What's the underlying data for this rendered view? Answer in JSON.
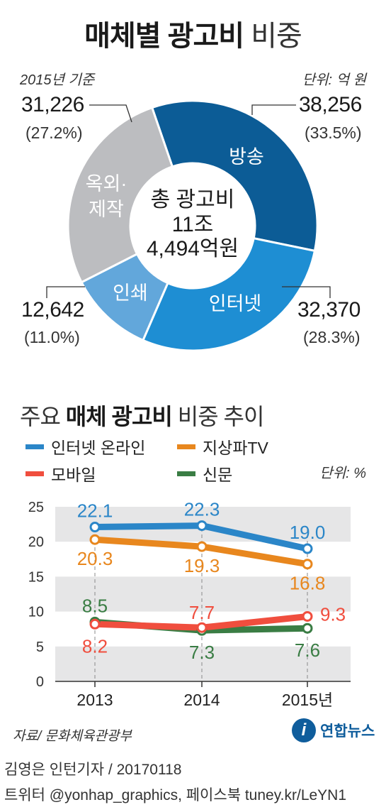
{
  "title": {
    "bold": "매체별 광고비",
    "light": "비중"
  },
  "base_note": "2015년 기준",
  "unit_note": "단위: 억 원",
  "center": {
    "line1": "총 광고비",
    "line2": "11조",
    "line3": "4,494억원"
  },
  "donut": {
    "segments": [
      {
        "name": "방송",
        "value": "38,256",
        "pct": "(33.5%)",
        "share": 33.5,
        "color": "#0c5c96"
      },
      {
        "name": "인터넷",
        "value": "32,370",
        "pct": "(28.3%)",
        "share": 28.3,
        "color": "#1e8ed3"
      },
      {
        "name": "인쇄",
        "value": "12,642",
        "pct": "(11.0%)",
        "share": 11.0,
        "color": "#62a7db"
      },
      {
        "name_line1": "옥외·",
        "name_line2": "제작",
        "value": "31,226",
        "pct": "(27.2%)",
        "share": 27.2,
        "color": "#bcbdc0"
      }
    ]
  },
  "trend": {
    "title_light": "주요",
    "title_bold": "매체 광고비",
    "title_light2": "비중 추이",
    "unit": "단위: %",
    "legend": [
      {
        "label": "인터넷 온라인",
        "color": "#2b86c8"
      },
      {
        "label": "지상파TV",
        "color": "#e8871e"
      },
      {
        "label": "모바일",
        "color": "#f04e3e"
      },
      {
        "label": "신문",
        "color": "#3a7d44"
      }
    ]
  },
  "chart_data": {
    "type": "line",
    "x": [
      "2013",
      "2014",
      "2015년"
    ],
    "ylim": [
      0,
      25
    ],
    "yticks": [
      "0",
      "5",
      "10",
      "15",
      "20",
      "25"
    ],
    "series": [
      {
        "name": "인터넷 온라인",
        "values": [
          22.1,
          22.3,
          19.0
        ],
        "labels": [
          "22.1",
          "22.3",
          "19.0"
        ],
        "color": "#2b86c8"
      },
      {
        "name": "지상파TV",
        "values": [
          20.3,
          19.3,
          16.8
        ],
        "labels": [
          "20.3",
          "19.3",
          "16.8"
        ],
        "color": "#e8871e"
      },
      {
        "name": "모바일",
        "values": [
          8.2,
          7.7,
          9.3
        ],
        "labels": [
          "8.2",
          "7.7",
          "9.3"
        ],
        "color": "#f04e3e"
      },
      {
        "name": "신문",
        "values": [
          8.5,
          7.3,
          7.6
        ],
        "labels": [
          "8.5",
          "7.3",
          "7.6"
        ],
        "color": "#3a7d44"
      }
    ]
  },
  "footer": {
    "source": "자료/ 문화체육관광부",
    "brand_logo": "i",
    "brand": "연합뉴스",
    "credit1": "김영은 인턴기자 / 20170118",
    "credit2": "트위터 @yonhap_graphics, 페이스북 tuney.kr/LeYN1"
  }
}
